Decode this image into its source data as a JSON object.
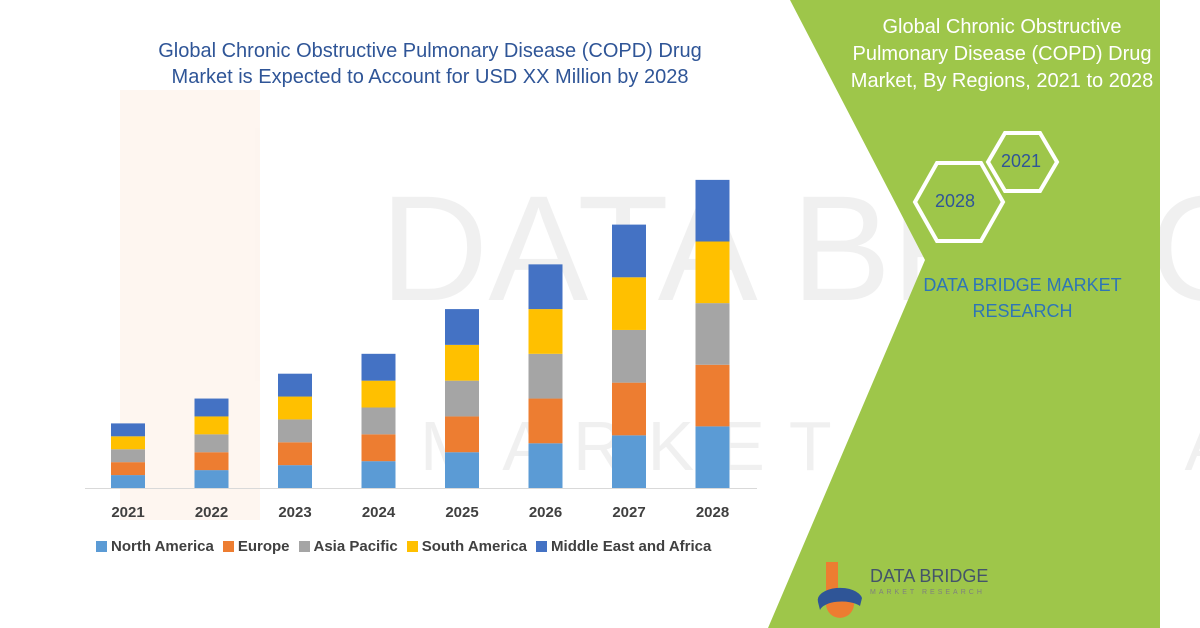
{
  "header": {
    "title_line1": "Global Chronic Obstructive Pulmonary Disease (COPD) Drug",
    "title_line2": "Market is Expected to Account for USD XX Million by 2028"
  },
  "side_panel": {
    "title_line1": "Global Chronic Obstructive",
    "title_line2": "Pulmonary Disease (COPD) Drug",
    "title_line3": "Market, By Regions, 2021 to 2028",
    "hex_front": "2028",
    "hex_back": "2021",
    "brand_line1": "DATA BRIDGE MARKET",
    "brand_line2": "RESEARCH",
    "background_color": "#9ec64a"
  },
  "logo": {
    "name": "DATA BRIDGE",
    "tagline": "MARKET RESEARCH"
  },
  "watermark": {
    "line1": "DATA BRIDGE",
    "line2": "MARKET RESEARCH"
  },
  "chart_data": {
    "type": "bar",
    "stacked": true,
    "categories": [
      "2021",
      "2022",
      "2023",
      "2024",
      "2025",
      "2026",
      "2027",
      "2028"
    ],
    "series": [
      {
        "name": "North America",
        "color": "#5b9bd5",
        "values": [
          13,
          18,
          23,
          27,
          36,
          45,
          53,
          62
        ]
      },
      {
        "name": "Europe",
        "color": "#ed7d31",
        "values": [
          13,
          18,
          23,
          27,
          36,
          45,
          53,
          62
        ]
      },
      {
        "name": "Asia Pacific",
        "color": "#a5a5a5",
        "values": [
          13,
          18,
          23,
          27,
          36,
          45,
          53,
          62
        ]
      },
      {
        "name": "South America",
        "color": "#ffc000",
        "values": [
          13,
          18,
          23,
          27,
          36,
          45,
          53,
          62
        ]
      },
      {
        "name": "Middle East and Africa",
        "color": "#4472c4",
        "values": [
          13,
          18,
          23,
          27,
          36,
          45,
          53,
          62
        ]
      }
    ],
    "ylim": [
      0,
      330
    ],
    "grid": false,
    "legend_position": "bottom",
    "title": "Global Chronic Obstructive Pulmonary Disease (COPD) Drug Market is Expected to Account for USD XX Million by 2028",
    "xlabel": "",
    "ylabel": ""
  }
}
